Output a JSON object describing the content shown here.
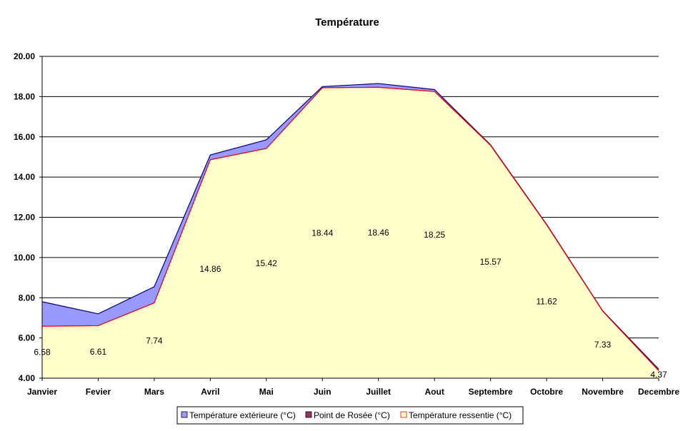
{
  "chart_data": {
    "type": "area",
    "title": "Température",
    "xlabel": "",
    "ylabel": "",
    "categories": [
      "Janvier",
      "Fevier",
      "Mars",
      "Avril",
      "Mai",
      "Juin",
      "Juillet",
      "Aout",
      "Septembre",
      "Octobre",
      "Novembre",
      "Decembre"
    ],
    "ylim": [
      4,
      20
    ],
    "yticks": [
      "4.00",
      "6.00",
      "8.00",
      "10.00",
      "12.00",
      "14.00",
      "16.00",
      "18.00",
      "20.00"
    ],
    "grid": true,
    "legend_position": "bottom",
    "series": [
      {
        "name": "Température extérieure (°C)",
        "color": "#9999ff",
        "values": [
          7.8,
          7.2,
          8.55,
          15.1,
          15.85,
          18.5,
          18.65,
          18.35,
          15.6,
          11.65,
          7.35,
          4.45
        ]
      },
      {
        "name": "Point de Rosée (°C)",
        "color": "#993366",
        "values": [
          6.58,
          6.61,
          7.74,
          14.86,
          15.42,
          18.44,
          18.46,
          18.25,
          15.57,
          11.62,
          7.33,
          4.37
        ]
      },
      {
        "name": "Température ressentie (°C)",
        "color": "#ffffcc",
        "stroke": "#ff0000",
        "values": [
          6.58,
          6.61,
          7.74,
          14.86,
          15.42,
          18.44,
          18.46,
          18.25,
          15.57,
          11.62,
          7.33,
          4.37
        ]
      }
    ],
    "data_labels": [
      "6.58",
      "6.61",
      "7.74",
      "14.86",
      "15.42",
      "18.44",
      "18.46",
      "18.25",
      "15.57",
      "11.62",
      "7.33",
      "4.37"
    ]
  }
}
